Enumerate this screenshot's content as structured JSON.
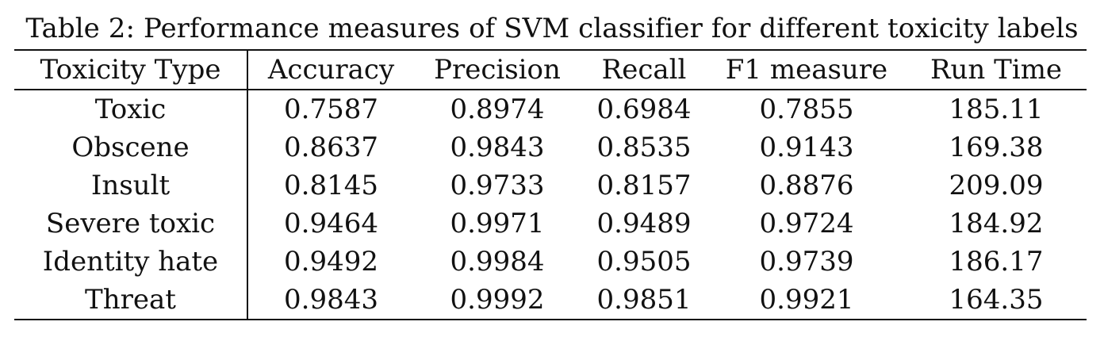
{
  "caption": "Table 2: Performance measures of SVM classifier for different toxicity labels",
  "table": {
    "headers": [
      "Toxicity Type",
      "Accuracy",
      "Precision",
      "Recall",
      "F1 measure",
      "Run Time"
    ],
    "rows": [
      [
        "Toxic",
        "0.7587",
        "0.8974",
        "0.6984",
        "0.7855",
        "185.11"
      ],
      [
        "Obscene",
        "0.8637",
        "0.9843",
        "0.8535",
        "0.9143",
        "169.38"
      ],
      [
        "Insult",
        "0.8145",
        "0.9733",
        "0.8157",
        "0.8876",
        "209.09"
      ],
      [
        "Severe toxic",
        "0.9464",
        "0.9971",
        "0.9489",
        "0.9724",
        "184.92"
      ],
      [
        "Identity hate",
        "0.9492",
        "0.9984",
        "0.9505",
        "0.9739",
        "186.17"
      ],
      [
        "Threat",
        "0.9843",
        "0.9992",
        "0.9851",
        "0.9921",
        "164.35"
      ]
    ]
  }
}
